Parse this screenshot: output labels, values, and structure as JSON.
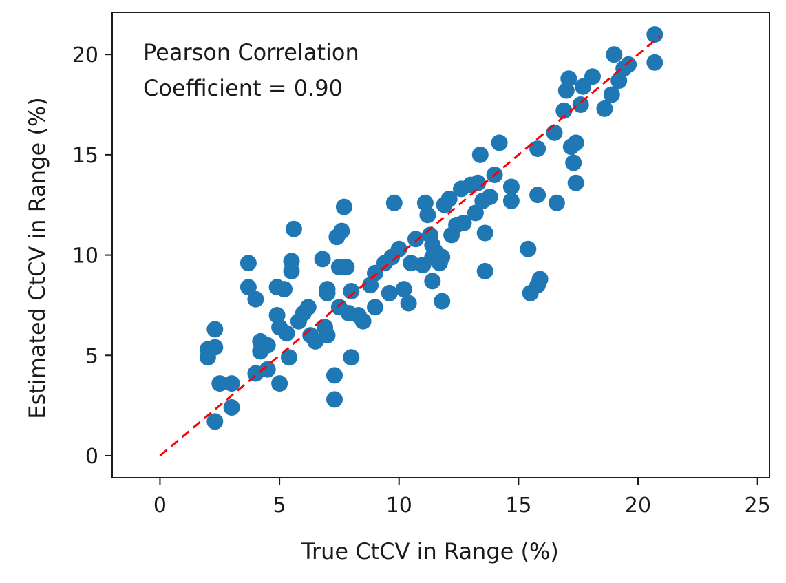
{
  "chart_data": {
    "type": "scatter",
    "title": "",
    "xlabel": "True CtCV in Range (%)",
    "ylabel": "Estimated CtCV in Range (%)",
    "xlim": [
      -2,
      25.5
    ],
    "ylim": [
      -1.1,
      22.1
    ],
    "xticks": [
      0,
      5,
      10,
      15,
      20,
      25
    ],
    "yticks": [
      0,
      5,
      10,
      15,
      20
    ],
    "grid": false,
    "annotation": {
      "line1": "Pearson Correlation",
      "line2": "Coefficient = 0.90"
    },
    "reference_line": {
      "style": "dashed",
      "color": "#ff0000",
      "from": [
        0,
        0
      ],
      "to": [
        20.9,
        20.9
      ]
    },
    "series": [
      {
        "name": "samples",
        "color": "#1f77b4",
        "points": [
          [
            2.0,
            4.9
          ],
          [
            2.0,
            5.3
          ],
          [
            2.3,
            5.4
          ],
          [
            2.3,
            6.3
          ],
          [
            2.3,
            1.7
          ],
          [
            2.5,
            3.6
          ],
          [
            3.0,
            3.6
          ],
          [
            3.0,
            2.4
          ],
          [
            3.7,
            9.6
          ],
          [
            3.7,
            8.4
          ],
          [
            4.0,
            7.8
          ],
          [
            4.0,
            4.1
          ],
          [
            4.2,
            5.2
          ],
          [
            4.2,
            5.7
          ],
          [
            4.5,
            5.5
          ],
          [
            4.5,
            4.3
          ],
          [
            4.9,
            8.4
          ],
          [
            4.9,
            7.0
          ],
          [
            5.0,
            6.4
          ],
          [
            5.0,
            3.6
          ],
          [
            5.2,
            8.3
          ],
          [
            5.3,
            6.1
          ],
          [
            5.4,
            4.9
          ],
          [
            5.5,
            9.7
          ],
          [
            5.5,
            9.2
          ],
          [
            5.6,
            11.3
          ],
          [
            5.8,
            6.7
          ],
          [
            6.0,
            7.1
          ],
          [
            6.2,
            7.4
          ],
          [
            6.3,
            6.0
          ],
          [
            6.5,
            5.7
          ],
          [
            6.8,
            9.8
          ],
          [
            6.9,
            6.4
          ],
          [
            7.0,
            8.3
          ],
          [
            7.0,
            8.1
          ],
          [
            7.0,
            6.0
          ],
          [
            7.3,
            4.0
          ],
          [
            7.3,
            2.8
          ],
          [
            7.4,
            10.9
          ],
          [
            7.5,
            9.4
          ],
          [
            7.5,
            7.4
          ],
          [
            7.6,
            11.2
          ],
          [
            7.7,
            12.4
          ],
          [
            7.8,
            9.4
          ],
          [
            7.9,
            7.1
          ],
          [
            8.0,
            8.2
          ],
          [
            8.0,
            4.9
          ],
          [
            8.3,
            7.0
          ],
          [
            8.5,
            6.7
          ],
          [
            8.8,
            8.5
          ],
          [
            9.0,
            9.1
          ],
          [
            9.0,
            7.4
          ],
          [
            9.4,
            9.6
          ],
          [
            9.6,
            8.1
          ],
          [
            9.7,
            9.9
          ],
          [
            9.8,
            12.6
          ],
          [
            10.0,
            10.3
          ],
          [
            10.2,
            8.3
          ],
          [
            10.4,
            7.6
          ],
          [
            10.5,
            9.6
          ],
          [
            10.7,
            10.8
          ],
          [
            11.0,
            9.5
          ],
          [
            11.1,
            12.6
          ],
          [
            11.2,
            12.0
          ],
          [
            11.3,
            11.0
          ],
          [
            11.4,
            10.5
          ],
          [
            11.4,
            9.9
          ],
          [
            11.4,
            8.7
          ],
          [
            11.5,
            10.2
          ],
          [
            11.7,
            9.6
          ],
          [
            11.8,
            9.9
          ],
          [
            11.8,
            7.7
          ],
          [
            11.9,
            12.5
          ],
          [
            12.1,
            12.8
          ],
          [
            12.2,
            11.0
          ],
          [
            12.4,
            11.5
          ],
          [
            12.6,
            13.3
          ],
          [
            12.7,
            11.6
          ],
          [
            13.0,
            13.5
          ],
          [
            13.2,
            12.1
          ],
          [
            13.3,
            13.6
          ],
          [
            13.4,
            15.0
          ],
          [
            13.5,
            12.7
          ],
          [
            13.6,
            11.1
          ],
          [
            13.6,
            9.2
          ],
          [
            13.8,
            12.9
          ],
          [
            14.0,
            14.0
          ],
          [
            14.2,
            15.6
          ],
          [
            14.7,
            13.4
          ],
          [
            14.7,
            12.7
          ],
          [
            15.4,
            10.3
          ],
          [
            15.5,
            8.1
          ],
          [
            15.8,
            15.3
          ],
          [
            15.8,
            13.0
          ],
          [
            15.8,
            8.5
          ],
          [
            15.9,
            8.8
          ],
          [
            16.5,
            16.1
          ],
          [
            16.6,
            12.6
          ],
          [
            16.9,
            17.2
          ],
          [
            17.0,
            18.2
          ],
          [
            17.1,
            18.8
          ],
          [
            17.2,
            15.4
          ],
          [
            17.3,
            14.6
          ],
          [
            17.4,
            15.6
          ],
          [
            17.4,
            13.6
          ],
          [
            17.6,
            17.5
          ],
          [
            17.7,
            18.4
          ],
          [
            18.1,
            18.9
          ],
          [
            18.6,
            17.3
          ],
          [
            18.9,
            18.0
          ],
          [
            19.0,
            20.0
          ],
          [
            19.2,
            18.7
          ],
          [
            19.4,
            19.3
          ],
          [
            19.6,
            19.5
          ],
          [
            20.7,
            21.0
          ],
          [
            20.7,
            19.6
          ]
        ]
      }
    ]
  }
}
